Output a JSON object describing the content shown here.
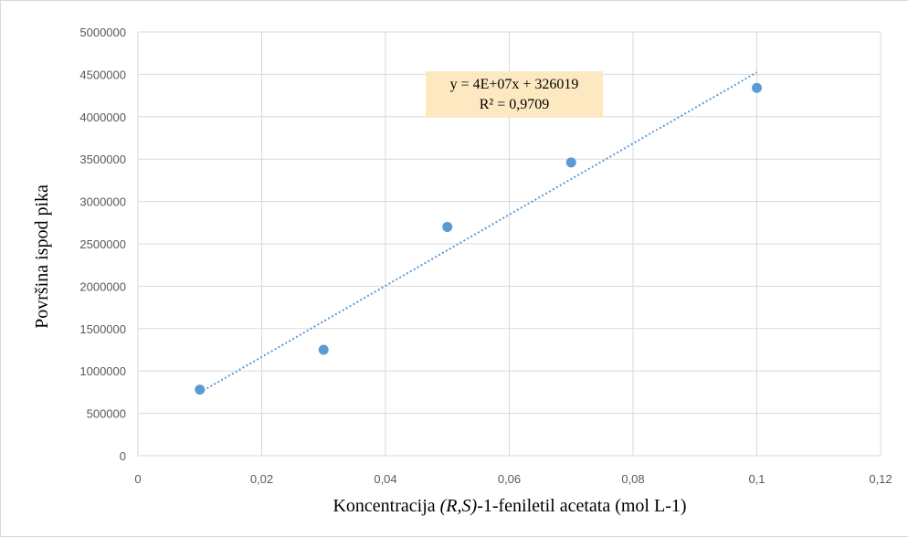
{
  "chart_data": {
    "type": "scatter",
    "xlabel_parts": [
      "Koncentracija ",
      "(R,S)",
      "-1-feniletil  acetata (mol L-1)"
    ],
    "ylabel": "Površina ispod pika",
    "xlim": [
      0,
      0.12
    ],
    "ylim": [
      0,
      5000000
    ],
    "x_ticks": [
      "0",
      "0,02",
      "0,04",
      "0,06",
      "0,08",
      "0,1",
      "0,12"
    ],
    "y_ticks": [
      "0",
      "500000",
      "1000000",
      "1500000",
      "2000000",
      "2500000",
      "3000000",
      "3500000",
      "4000000",
      "4500000",
      "5000000"
    ],
    "grid": true,
    "series": [
      {
        "x": [
          0.01,
          0.03,
          0.05,
          0.07,
          0.1
        ],
        "y": [
          780000,
          1250000,
          2700000,
          3460000,
          4340000
        ]
      }
    ],
    "trendline": {
      "type": "linear",
      "x_range": [
        0.01,
        0.1
      ],
      "slope": 41975000,
      "intercept": 326019,
      "equation": "y = 4E+07x + 326019",
      "r_squared": "R² = 0,9709"
    },
    "colors": {
      "marker": "#5b9bd5",
      "trendline": "#5b9bd5",
      "gridline": "#d9d9d9",
      "equation_box": "#fde9c1"
    }
  }
}
